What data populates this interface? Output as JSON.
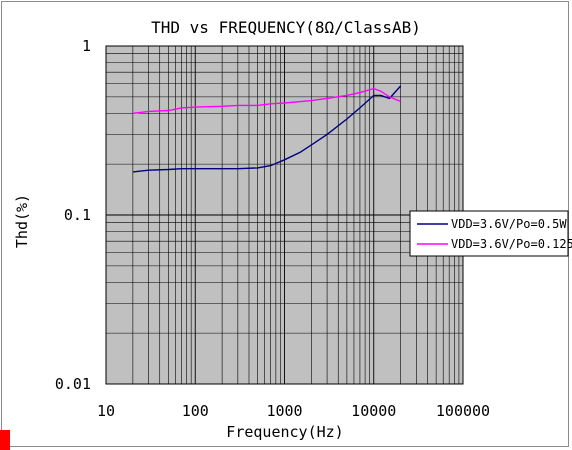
{
  "chart_data": {
    "type": "line",
    "title": "THD vs FREQUENCY(8Ω/ClassAB)",
    "xlabel": "Frequency(Hz)",
    "ylabel": "Thd(%)",
    "x_scale": "log",
    "y_scale": "log",
    "xlim": [
      10,
      100000
    ],
    "ylim": [
      0.01,
      1
    ],
    "x_ticks": [
      {
        "value": 10,
        "label": "10"
      },
      {
        "value": 100,
        "label": "100"
      },
      {
        "value": 1000,
        "label": "1000"
      },
      {
        "value": 10000,
        "label": "10000"
      },
      {
        "value": 100000,
        "label": "100000"
      }
    ],
    "y_ticks": [
      {
        "value": 1,
        "label": "1"
      },
      {
        "value": 0.1,
        "label": "0.1"
      },
      {
        "value": 0.01,
        "label": "0.01"
      }
    ],
    "grid": true,
    "plot_background": "#c0c0c0",
    "legend_position": "right",
    "series": [
      {
        "name": "VDD=3.6V/Po=0.5W",
        "color": "#000080",
        "points": [
          [
            20,
            0.18
          ],
          [
            30,
            0.184
          ],
          [
            50,
            0.186
          ],
          [
            70,
            0.188
          ],
          [
            100,
            0.188
          ],
          [
            200,
            0.188
          ],
          [
            300,
            0.188
          ],
          [
            500,
            0.19
          ],
          [
            700,
            0.196
          ],
          [
            1000,
            0.212
          ],
          [
            1500,
            0.235
          ],
          [
            2000,
            0.26
          ],
          [
            3000,
            0.3
          ],
          [
            5000,
            0.37
          ],
          [
            7000,
            0.43
          ],
          [
            10000,
            0.51
          ],
          [
            12000,
            0.51
          ],
          [
            15000,
            0.49
          ],
          [
            20000,
            0.58
          ]
        ]
      },
      {
        "name": "VDD=3.6V/Po=0.125",
        "color": "#ff00ff",
        "points": [
          [
            20,
            0.4
          ],
          [
            30,
            0.41
          ],
          [
            50,
            0.415
          ],
          [
            70,
            0.43
          ],
          [
            100,
            0.435
          ],
          [
            200,
            0.44
          ],
          [
            300,
            0.445
          ],
          [
            500,
            0.445
          ],
          [
            700,
            0.455
          ],
          [
            1000,
            0.46
          ],
          [
            2000,
            0.475
          ],
          [
            3000,
            0.49
          ],
          [
            5000,
            0.51
          ],
          [
            7000,
            0.53
          ],
          [
            10000,
            0.56
          ],
          [
            12000,
            0.54
          ],
          [
            15000,
            0.5
          ],
          [
            20000,
            0.47
          ]
        ]
      }
    ]
  }
}
